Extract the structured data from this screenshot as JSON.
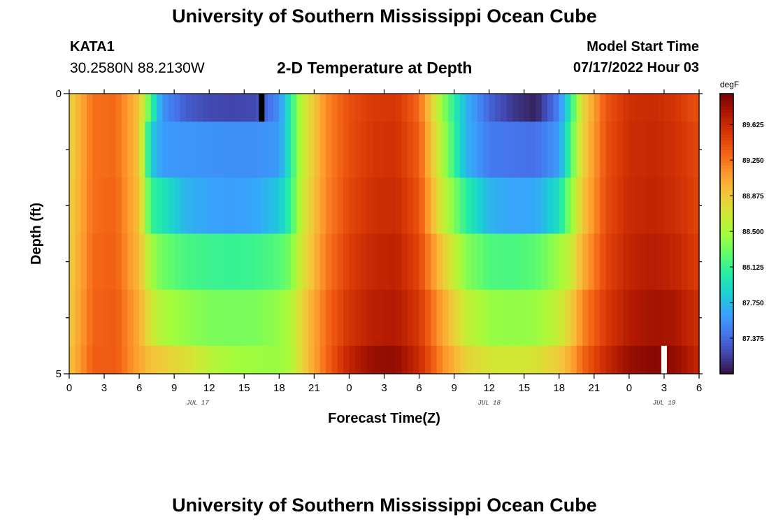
{
  "header": {
    "title": "University of Southern Mississippi Ocean Cube",
    "station": "KATA1",
    "coords": "30.2580N  88.2130W",
    "subtitle": "2-D Temperature at Depth",
    "model_start_label": "Model Start Time",
    "model_start_value": "07/17/2022 Hour 03"
  },
  "footer": {
    "title": "University of Southern Mississippi Ocean Cube"
  },
  "chart_data": {
    "type": "heatmap",
    "title": "2-D Temperature at Depth",
    "xlabel": "Forecast Time(Z)",
    "ylabel": "Depth (ft)",
    "x_unit": "hours from 07/17 00Z",
    "x_range": [
      0,
      54
    ],
    "x_tick_values": [
      0,
      3,
      6,
      9,
      12,
      15,
      18,
      21,
      24,
      27,
      30,
      33,
      36,
      39,
      42,
      45,
      48,
      51,
      54
    ],
    "x_tick_labels": [
      "0",
      "3",
      "6",
      "9",
      "12",
      "15",
      "18",
      "21",
      "0",
      "3",
      "6",
      "9",
      "12",
      "15",
      "18",
      "21",
      "0",
      "3",
      "6"
    ],
    "date_labels": [
      {
        "hour": 11,
        "text": "JUL 17"
      },
      {
        "hour": 36,
        "text": "JUL 18"
      },
      {
        "hour": 51,
        "text": "JUL 19"
      }
    ],
    "y_range": [
      0,
      5
    ],
    "y_tick_labels": [
      "0",
      "5"
    ],
    "y_minor_ticks": [
      1,
      2,
      3,
      4
    ],
    "colorbar": {
      "unit": "degF",
      "range": [
        87.0,
        89.95
      ],
      "tick_labels": [
        "89.625",
        "89.250",
        "88.875",
        "88.500",
        "88.125",
        "87.750",
        "87.375"
      ],
      "tick_values": [
        89.625,
        89.25,
        88.875,
        88.5,
        88.125,
        87.75,
        87.375
      ],
      "colors": [
        "#30123b",
        "#4145ab",
        "#4675ed",
        "#39a2fc",
        "#1bcfd4",
        "#24eca6",
        "#61fc6c",
        "#a4fc3b",
        "#d1e834",
        "#f3c63a",
        "#fe9b2d",
        "#f36315",
        "#d93806",
        "#b11901",
        "#7a0402"
      ]
    },
    "hours": [
      0,
      2,
      4,
      6,
      7,
      8,
      10,
      12,
      14,
      16,
      18,
      19,
      20,
      22,
      24,
      26,
      28,
      30,
      32,
      34,
      36,
      38,
      40,
      42,
      43,
      44,
      46,
      48,
      50,
      52,
      54
    ],
    "layers": [
      {
        "depth_range": [
          0,
          0.5
        ],
        "values": [
          88.8,
          89.27,
          89.3,
          88.9,
          88.16,
          87.55,
          87.32,
          87.23,
          87.21,
          87.23,
          87.55,
          88.06,
          88.62,
          89.16,
          89.42,
          89.52,
          89.55,
          89.3,
          88.43,
          87.72,
          87.35,
          87.16,
          87.06,
          87.5,
          88.06,
          88.78,
          89.38,
          89.58,
          89.62,
          89.55,
          89.4
        ]
      },
      {
        "depth_range": [
          0.5,
          1.5
        ],
        "values": [
          88.8,
          89.27,
          89.3,
          88.9,
          87.85,
          87.6,
          87.58,
          87.56,
          87.55,
          87.55,
          87.6,
          88.06,
          88.62,
          89.16,
          89.42,
          89.55,
          89.58,
          89.35,
          88.52,
          87.72,
          87.45,
          87.42,
          87.4,
          87.6,
          88.2,
          88.82,
          89.4,
          89.6,
          89.64,
          89.58,
          89.44
        ]
      },
      {
        "depth_range": [
          1.5,
          2.5
        ],
        "values": [
          88.82,
          89.28,
          89.32,
          88.92,
          88.12,
          88.0,
          87.72,
          87.64,
          87.62,
          87.65,
          87.82,
          88.12,
          88.66,
          89.18,
          89.45,
          89.58,
          89.62,
          89.4,
          88.64,
          88.08,
          87.72,
          87.64,
          87.66,
          87.96,
          88.4,
          88.88,
          89.42,
          89.62,
          89.66,
          89.6,
          89.46
        ]
      },
      {
        "depth_range": [
          2.5,
          3.5
        ],
        "values": [
          88.84,
          89.3,
          89.34,
          88.95,
          88.48,
          88.3,
          88.18,
          88.14,
          88.12,
          88.14,
          88.22,
          88.34,
          88.72,
          89.22,
          89.5,
          89.64,
          89.68,
          89.46,
          88.88,
          88.38,
          88.2,
          88.18,
          88.24,
          88.46,
          88.64,
          89.0,
          89.46,
          89.66,
          89.72,
          89.66,
          89.5
        ]
      },
      {
        "depth_range": [
          3.5,
          4.5
        ],
        "values": [
          88.86,
          89.32,
          89.36,
          89.02,
          88.7,
          88.52,
          88.42,
          88.35,
          88.33,
          88.35,
          88.42,
          88.54,
          88.82,
          89.28,
          89.56,
          89.7,
          89.74,
          89.54,
          89.06,
          88.62,
          88.44,
          88.42,
          88.44,
          88.62,
          88.85,
          89.18,
          89.52,
          89.72,
          89.8,
          89.76,
          89.58
        ]
      },
      {
        "depth_range": [
          4.5,
          5
        ],
        "values": [
          88.9,
          89.34,
          89.36,
          89.05,
          88.92,
          88.86,
          88.74,
          88.58,
          88.48,
          88.45,
          88.44,
          88.52,
          88.82,
          89.3,
          89.66,
          89.84,
          89.86,
          89.62,
          89.16,
          88.82,
          88.7,
          88.68,
          88.72,
          88.86,
          89.04,
          89.3,
          89.62,
          89.84,
          89.9,
          89.86,
          89.64
        ]
      }
    ],
    "highlight_markers": [
      {
        "hour": 16.5,
        "depth_range": [
          0,
          0.5
        ],
        "color": "#000000"
      },
      {
        "hour": 51.0,
        "depth_range": [
          4.5,
          5
        ],
        "color": "#ffffff"
      }
    ]
  }
}
